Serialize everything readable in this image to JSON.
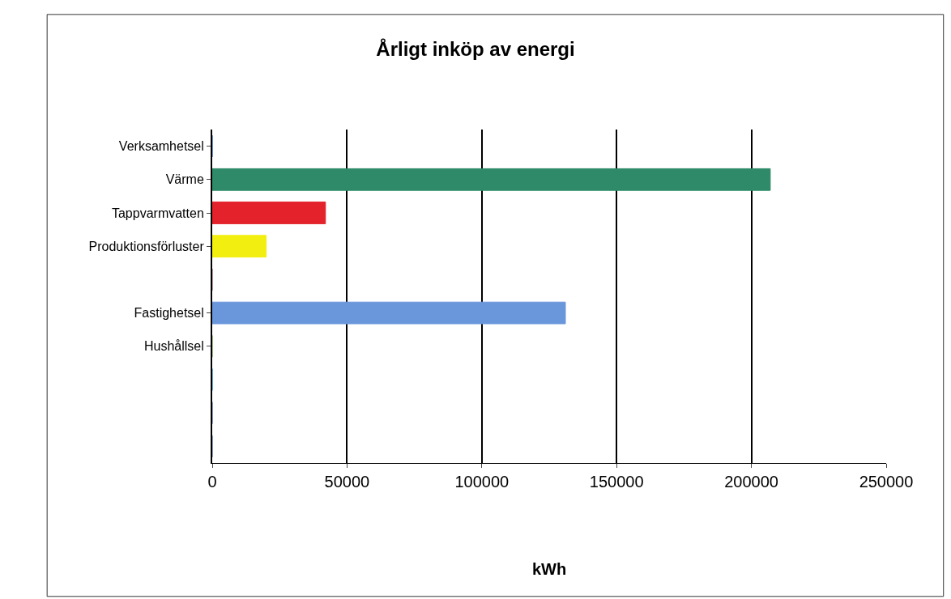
{
  "chart_data": {
    "type": "bar",
    "orientation": "horizontal",
    "title": "Årligt inköp av energi",
    "xlabel": "kWh",
    "categories": [
      "Verksamhetsel",
      "Värme",
      "Tappvarmvatten",
      "Produktionsförluster",
      null,
      "Fastighetsel",
      "Hushållsel",
      null,
      null,
      null
    ],
    "values": [
      0,
      207000,
      42000,
      20000,
      0,
      131000,
      0,
      0,
      0,
      0
    ],
    "colors": [
      "#4f76c8",
      "#2e8a68",
      "#e3222c",
      "#f2ee10",
      "#b07a90",
      "#6a96dc",
      "#8fb06a",
      "#3f9fd0",
      "#6f86b0",
      "#6f86b0"
    ],
    "xlim": [
      0,
      250000
    ],
    "xticks": [
      0,
      50000,
      100000,
      150000,
      200000,
      250000
    ],
    "grid": "x",
    "legend": false
  }
}
